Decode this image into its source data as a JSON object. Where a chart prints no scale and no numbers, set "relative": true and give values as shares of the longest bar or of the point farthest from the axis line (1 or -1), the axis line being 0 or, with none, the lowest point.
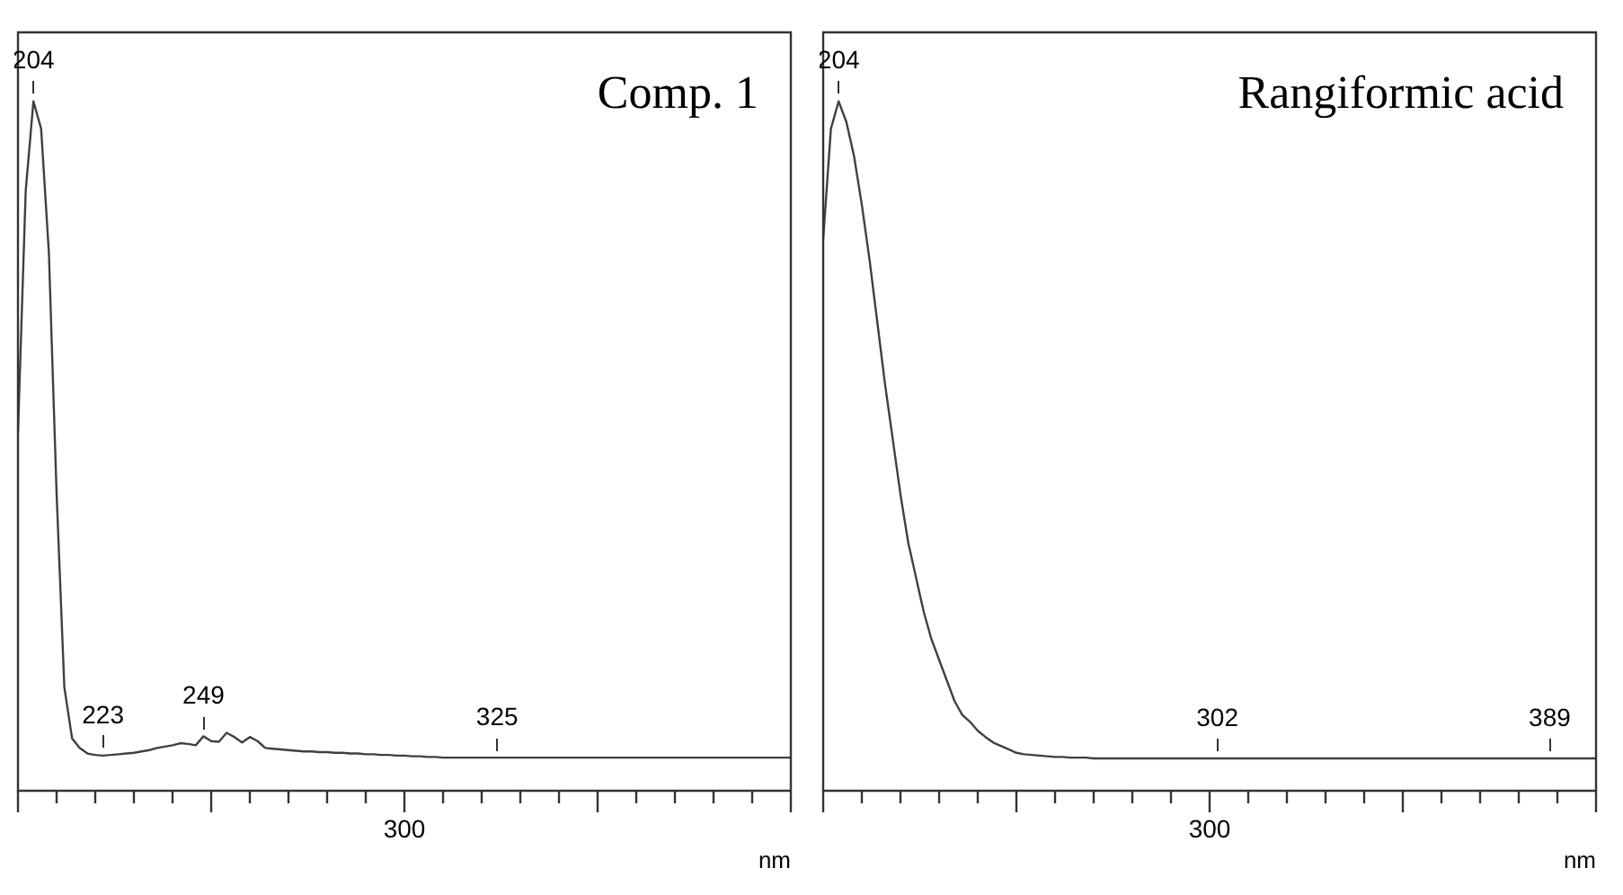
{
  "chart_data": [
    {
      "type": "line",
      "title": "Comp. 1",
      "xlabel": "nm",
      "relative": true,
      "grid": false,
      "marker": "none",
      "color": "#404040",
      "categories": [
        null,
        null,
        "204",
        null,
        null,
        null,
        null,
        null,
        null,
        null,
        null,
        "223",
        null,
        null,
        null,
        null,
        null,
        null,
        null,
        null,
        null,
        null,
        null,
        null,
        "249",
        null,
        null,
        null,
        null,
        null,
        null,
        null,
        null,
        null,
        null,
        null,
        null,
        null,
        null,
        null,
        null,
        null,
        null,
        null,
        null,
        null,
        null,
        null,
        null,
        null,
        null,
        null,
        null,
        null,
        null,
        null,
        null,
        null,
        null,
        null,
        null,
        null,
        "325",
        null,
        null,
        null,
        null,
        null,
        null,
        null,
        null,
        null,
        null,
        null,
        null,
        null,
        null,
        null,
        null,
        null,
        null,
        null,
        null,
        null,
        null,
        null,
        null,
        null,
        null,
        null,
        null,
        null,
        null,
        null,
        null,
        null,
        null,
        null,
        null,
        null,
        null
      ],
      "values": [
        0.52,
        0.87,
        1.0,
        0.96,
        0.78,
        0.43,
        0.15,
        0.076,
        0.062,
        0.054,
        0.052,
        0.051,
        0.052,
        0.053,
        0.054,
        0.055,
        0.057,
        0.059,
        0.062,
        0.064,
        0.066,
        0.069,
        0.068,
        0.066,
        0.079,
        0.072,
        0.071,
        0.084,
        0.078,
        0.07,
        0.078,
        0.072,
        0.062,
        0.061,
        0.06,
        0.059,
        0.058,
        0.057,
        0.057,
        0.056,
        0.056,
        0.055,
        0.055,
        0.054,
        0.054,
        0.053,
        0.053,
        0.052,
        0.052,
        0.051,
        0.051,
        0.05,
        0.05,
        0.049,
        0.049,
        0.048,
        0.048,
        0.048,
        0.048,
        0.048,
        0.048,
        0.048,
        0.048,
        0.048,
        0.048,
        0.048,
        0.048,
        0.048,
        0.048,
        0.048,
        0.048,
        0.048,
        0.048,
        0.048,
        0.048,
        0.048,
        0.048,
        0.048,
        0.048,
        0.048,
        0.048,
        0.048,
        0.048,
        0.048,
        0.048,
        0.048,
        0.048,
        0.048,
        0.048,
        0.048,
        0.048,
        0.048,
        0.048,
        0.048,
        0.048,
        0.048,
        0.048,
        0.048,
        0.048,
        0.048,
        0.048
      ],
      "annotations": [
        "300"
      ]
    },
    {
      "type": "line",
      "title": "Rangiformic acid",
      "xlabel": "nm",
      "relative": true,
      "grid": false,
      "marker": "none",
      "color": "#404040",
      "categories": [
        null,
        null,
        "204",
        null,
        null,
        null,
        null,
        null,
        null,
        null,
        null,
        null,
        null,
        null,
        null,
        null,
        null,
        null,
        null,
        null,
        null,
        null,
        null,
        null,
        null,
        null,
        null,
        null,
        null,
        null,
        null,
        null,
        null,
        null,
        null,
        null,
        null,
        null,
        null,
        null,
        null,
        null,
        null,
        null,
        null,
        null,
        null,
        null,
        null,
        null,
        null,
        "302",
        null,
        null,
        null,
        null,
        null,
        null,
        null,
        null,
        null,
        null,
        null,
        null,
        null,
        null,
        null,
        null,
        null,
        null,
        null,
        null,
        null,
        null,
        null,
        null,
        null,
        null,
        null,
        null,
        null,
        null,
        null,
        null,
        null,
        null,
        null,
        null,
        null,
        null,
        null,
        null,
        null,
        null,
        "389",
        null,
        null,
        null,
        null,
        null,
        null
      ],
      "values": [
        0.8,
        0.96,
        1.0,
        0.97,
        0.92,
        0.85,
        0.77,
        0.68,
        0.59,
        0.51,
        0.43,
        0.36,
        0.31,
        0.26,
        0.22,
        0.19,
        0.16,
        0.13,
        0.11,
        0.1,
        0.087,
        0.078,
        0.07,
        0.065,
        0.06,
        0.055,
        0.053,
        0.052,
        0.051,
        0.05,
        0.049,
        0.049,
        0.048,
        0.048,
        0.048,
        0.047,
        0.047,
        0.047,
        0.047,
        0.047,
        0.047,
        0.047,
        0.047,
        0.047,
        0.047,
        0.047,
        0.047,
        0.047,
        0.047,
        0.047,
        0.047,
        0.047,
        0.047,
        0.047,
        0.047,
        0.047,
        0.047,
        0.047,
        0.047,
        0.047,
        0.047,
        0.047,
        0.047,
        0.047,
        0.047,
        0.047,
        0.047,
        0.047,
        0.047,
        0.047,
        0.047,
        0.047,
        0.047,
        0.047,
        0.047,
        0.047,
        0.047,
        0.047,
        0.047,
        0.047,
        0.047,
        0.047,
        0.047,
        0.047,
        0.047,
        0.047,
        0.047,
        0.047,
        0.047,
        0.047,
        0.047,
        0.047,
        0.047,
        0.047,
        0.047,
        0.047,
        0.047,
        0.047,
        0.047,
        0.047,
        0.047
      ],
      "annotations": [
        "300"
      ]
    }
  ]
}
